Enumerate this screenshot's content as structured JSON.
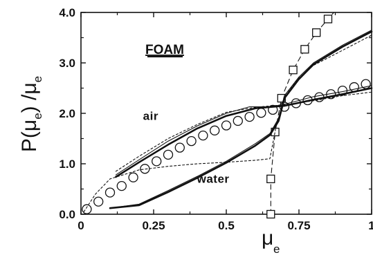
{
  "chart_data": {
    "type": "line",
    "title": "FOAM",
    "xlabel_base": "μ",
    "xlabel_sub": "e",
    "ylabel_parts": [
      "P(μ",
      "e",
      ") /μ",
      "e"
    ],
    "xlim": [
      0,
      1
    ],
    "ylim": [
      0,
      4
    ],
    "xticks": [
      0,
      0.25,
      0.5,
      0.75,
      1
    ],
    "xtick_labels": [
      "0",
      "0.25",
      "0.5",
      "0.75",
      "1"
    ],
    "yticks": [
      0,
      1,
      2,
      3,
      4
    ],
    "ytick_labels": [
      "0.0",
      "1.0",
      "2.0",
      "3.0",
      "4.0"
    ],
    "grid": false,
    "annotations": [
      {
        "text": "air",
        "x": 0.24,
        "y": 1.87
      },
      {
        "text": "water",
        "x": 0.455,
        "y": 0.62
      }
    ],
    "series": [
      {
        "style": "thin-solid",
        "x": [
          0.12,
          0.2,
          0.3,
          0.4,
          0.5,
          0.58,
          0.65,
          0.7,
          0.8,
          0.9,
          1.0
        ],
        "y": [
          0.78,
          1.08,
          1.45,
          1.75,
          2.0,
          2.13,
          2.13,
          2.18,
          2.33,
          2.43,
          2.55
        ]
      },
      {
        "style": "thick-solid",
        "x": [
          0.12,
          0.2,
          0.3,
          0.4,
          0.5,
          0.6,
          0.7,
          0.8,
          0.9,
          1.0
        ],
        "y": [
          0.74,
          1.03,
          1.38,
          1.7,
          1.95,
          2.1,
          2.15,
          2.27,
          2.38,
          2.5
        ]
      },
      {
        "style": "dotted",
        "x": [
          0.12,
          0.2,
          0.3,
          0.4,
          0.5,
          0.6,
          0.7,
          0.8,
          0.9,
          1.0
        ],
        "y": [
          0.85,
          1.15,
          1.5,
          1.78,
          2.02,
          2.12,
          2.17,
          2.25,
          2.35,
          2.42
        ]
      },
      {
        "style": "circles",
        "x": [
          0.02,
          0.06,
          0.1,
          0.14,
          0.18,
          0.22,
          0.26,
          0.3,
          0.34,
          0.38,
          0.42,
          0.46,
          0.5,
          0.54,
          0.58,
          0.62,
          0.66,
          0.7,
          0.74,
          0.78,
          0.82,
          0.86,
          0.9,
          0.94,
          0.98
        ],
        "y": [
          0.1,
          0.25,
          0.43,
          0.56,
          0.73,
          0.9,
          1.05,
          1.18,
          1.32,
          1.45,
          1.56,
          1.66,
          1.76,
          1.85,
          1.93,
          2.01,
          2.07,
          2.13,
          2.2,
          2.26,
          2.32,
          2.38,
          2.45,
          2.52,
          2.58
        ]
      },
      {
        "style": "dashed-squares",
        "x": [
          0.653,
          0.653,
          0.668,
          0.69,
          0.73,
          0.77,
          0.81,
          0.85,
          0.87
        ],
        "y": [
          0.0,
          0.7,
          1.63,
          2.3,
          2.86,
          3.27,
          3.6,
          3.87,
          4.0
        ]
      },
      {
        "style": "markers-squares",
        "x": [
          0.653,
          0.653,
          0.668,
          0.69,
          0.73,
          0.77,
          0.81,
          0.85
        ],
        "y": [
          0.0,
          0.7,
          1.63,
          2.3,
          2.86,
          3.27,
          3.6,
          3.87
        ]
      },
      {
        "style": "thin-solid",
        "x": [
          0.1,
          0.2,
          0.3,
          0.4,
          0.5,
          0.6,
          0.65,
          0.68,
          0.7,
          0.75,
          0.8,
          0.9,
          1.0
        ],
        "y": [
          0.12,
          0.2,
          0.47,
          0.75,
          1.05,
          1.4,
          1.6,
          1.9,
          2.35,
          2.72,
          3.0,
          3.35,
          3.65
        ]
      },
      {
        "style": "thick-solid",
        "x": [
          0.1,
          0.2,
          0.3,
          0.4,
          0.5,
          0.6,
          0.65,
          0.68,
          0.7,
          0.75,
          0.8,
          0.9,
          1.0
        ],
        "y": [
          0.12,
          0.18,
          0.44,
          0.72,
          1.02,
          1.36,
          1.57,
          1.85,
          2.3,
          2.68,
          2.97,
          3.32,
          3.62
        ]
      },
      {
        "style": "dotted",
        "x": [
          0.01,
          0.05,
          0.1,
          0.2,
          0.3,
          0.4,
          0.5,
          0.6,
          0.65,
          0.67,
          0.7,
          0.75,
          0.8,
          0.9,
          1.0
        ],
        "y": [
          0.05,
          0.4,
          0.7,
          0.88,
          0.95,
          1.0,
          1.03,
          1.07,
          1.1,
          1.7,
          2.35,
          2.7,
          2.95,
          3.25,
          3.55
        ]
      }
    ]
  }
}
